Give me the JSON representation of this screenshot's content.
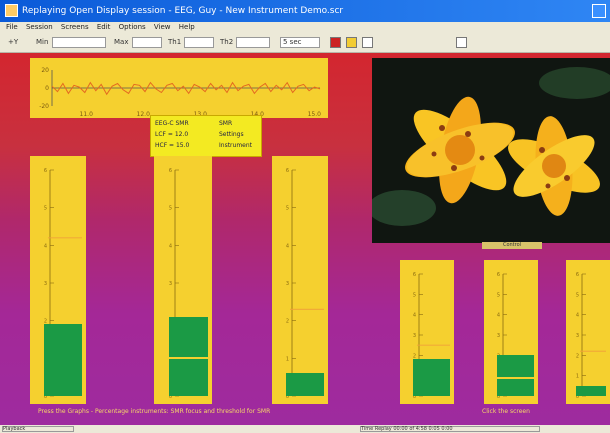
{
  "window": {
    "title": "Replaying Open Display session - EEG, Guy - New Instrument Demo.scr"
  },
  "menu": [
    "File",
    "Session",
    "Screens",
    "Edit",
    "Options",
    "View",
    "Help"
  ],
  "toolbar": {
    "y_label": "+Y",
    "min_label": "Min",
    "max_label": "Max",
    "th1_label": "Th1",
    "th2_label": "Th2",
    "time_select": "5 sec",
    "buttons": [
      "stop-icon",
      "pause-icon",
      "step-icon",
      "letter-a-icon"
    ]
  },
  "line_graph": {
    "chart_data": {
      "type": "line",
      "y_ticks": [
        "20",
        "0",
        "-20"
      ],
      "x_ticks": [
        "11.0",
        "12.0",
        "13.0",
        "14.0",
        "15.0"
      ],
      "xlim": [
        10.4,
        15.1
      ],
      "ylim": [
        -20,
        20
      ],
      "values": [
        2,
        -4,
        5,
        -6,
        3,
        1,
        -5,
        6,
        -3,
        4,
        -7,
        2,
        5,
        -2,
        -6,
        4,
        3,
        -4,
        6,
        -1,
        -5,
        3,
        5,
        -3,
        2,
        -6,
        4,
        1,
        -4,
        5,
        -2,
        3,
        -5,
        6,
        -3,
        2,
        4,
        -6,
        1,
        5,
        -4,
        3,
        -2,
        6,
        -5,
        2,
        4,
        -3,
        1,
        -1
      ]
    }
  },
  "eeg_panel": {
    "title": "EEG-C SMR",
    "lcf": "LCF = 12.0",
    "hcf": "HCF = 15.0",
    "mode": "SMR",
    "settings": "Settings",
    "instrument": "Instrument"
  },
  "photo_caption": "Control",
  "bar_instruments": {
    "scale_labels": [
      "6",
      "5",
      "4",
      "3",
      "2",
      "1",
      "0"
    ],
    "scale_max": 6,
    "bars": [
      {
        "value": 1.9,
        "threshold": 4.2
      },
      {
        "value": 2.1,
        "threshold": 1.0,
        "split": 1.0
      },
      {
        "value": 0.6,
        "threshold": 2.3
      },
      {
        "value": 1.8,
        "threshold": 2.5
      },
      {
        "value": 2.0,
        "threshold": 1.3,
        "split": 0.9
      },
      {
        "value": 0.5,
        "threshold": 2.2
      }
    ]
  },
  "captions": {
    "left": "Press the Graphs - Percentage instruments: SMR focus and threshold for SMR",
    "right": "Click the screen"
  },
  "status": {
    "left": "Playback",
    "right": "Time Replay 00:00 of 4:58  0:05  0:00"
  },
  "colors": {
    "panel": "#f5d02f",
    "bar": "#1b9a45",
    "title_bar": "#0a5ad8"
  }
}
